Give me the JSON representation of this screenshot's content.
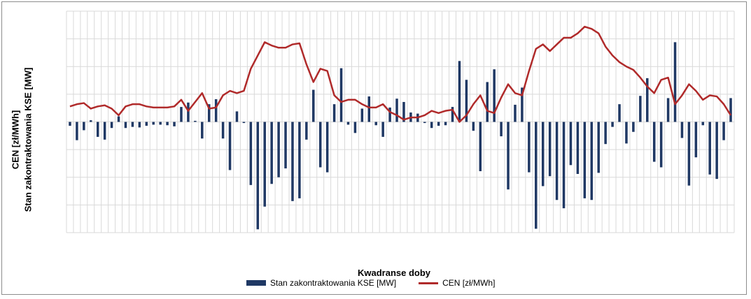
{
  "chart_data": {
    "type": "bar+line",
    "title": "",
    "xlabel": "Kwadranse doby",
    "ylabel_left_1": "CEN [zł/MWh]",
    "ylabel_left_2": "Stan zakontraktowania KSE [MW]",
    "grid": true,
    "legend_position": "bottom",
    "bar_ylim": [
      -20,
      20
    ],
    "line_ylim": [
      0,
      100
    ],
    "series": [
      {
        "name": "Stan zakontraktowania KSE [MW]",
        "type": "bar",
        "color": "#1f3864",
        "values": [
          -0.7,
          -3.3,
          -1.5,
          0.3,
          -2.7,
          -3.2,
          -1.1,
          1.0,
          -1.1,
          -0.9,
          -1.0,
          -0.7,
          -0.5,
          -0.5,
          -0.6,
          -0.8,
          2.7,
          3.5,
          0.2,
          -3.0,
          3.2,
          4.1,
          -3.0,
          -8.7,
          1.9,
          -0.2,
          -11.4,
          -19.4,
          -15.3,
          -11.2,
          -10.0,
          -8.4,
          -14.3,
          -13.8,
          -3.2,
          5.8,
          -8.2,
          -9.1,
          3.2,
          9.7,
          -0.5,
          -2.0,
          2.4,
          4.6,
          -0.6,
          -2.7,
          2.6,
          4.2,
          3.6,
          1.7,
          1.5,
          -0.2,
          -1.1,
          -0.7,
          -0.6,
          2.7,
          11.0,
          7.6,
          -1.6,
          -8.9,
          7.2,
          9.5,
          -2.6,
          -12.2,
          3.1,
          6.2,
          -9.1,
          -19.3,
          -11.6,
          -9.8,
          -14.1,
          -15.6,
          -7.8,
          -9.4,
          -13.8,
          -14.1,
          -9.2,
          -4.0,
          -0.9,
          3.2,
          -3.9,
          -1.8,
          4.7,
          7.9,
          -7.2,
          -8.2,
          4.3,
          14.4,
          -2.9,
          -11.5,
          -6.4,
          -0.6,
          -9.5,
          -10.3,
          -3.3,
          4.3
        ]
      },
      {
        "name": "CEN [zł/MWh]",
        "type": "line",
        "color": "#b02a2a",
        "values": [
          57,
          58,
          58.5,
          56,
          57,
          57.5,
          56,
          53,
          57,
          58,
          58,
          57,
          56.5,
          56.5,
          56.5,
          57,
          60,
          55,
          59,
          63,
          56,
          56.5,
          62,
          64,
          63,
          64,
          74,
          80,
          86,
          84.5,
          83.5,
          83.5,
          85,
          85.5,
          76,
          68,
          74,
          73,
          62,
          59,
          60,
          60,
          58,
          56.5,
          56.5,
          58,
          54.5,
          53,
          51,
          52,
          52,
          53,
          55,
          54,
          55,
          55.5,
          50,
          53,
          58,
          62,
          55,
          54,
          61,
          67,
          63,
          62,
          73,
          83,
          85,
          82,
          85,
          88,
          88,
          90,
          93,
          92,
          90,
          84,
          80,
          77,
          75,
          73.5,
          70,
          66,
          63,
          69,
          70,
          58,
          62,
          67,
          64,
          60,
          62,
          61.5,
          58,
          53
        ]
      }
    ]
  }
}
